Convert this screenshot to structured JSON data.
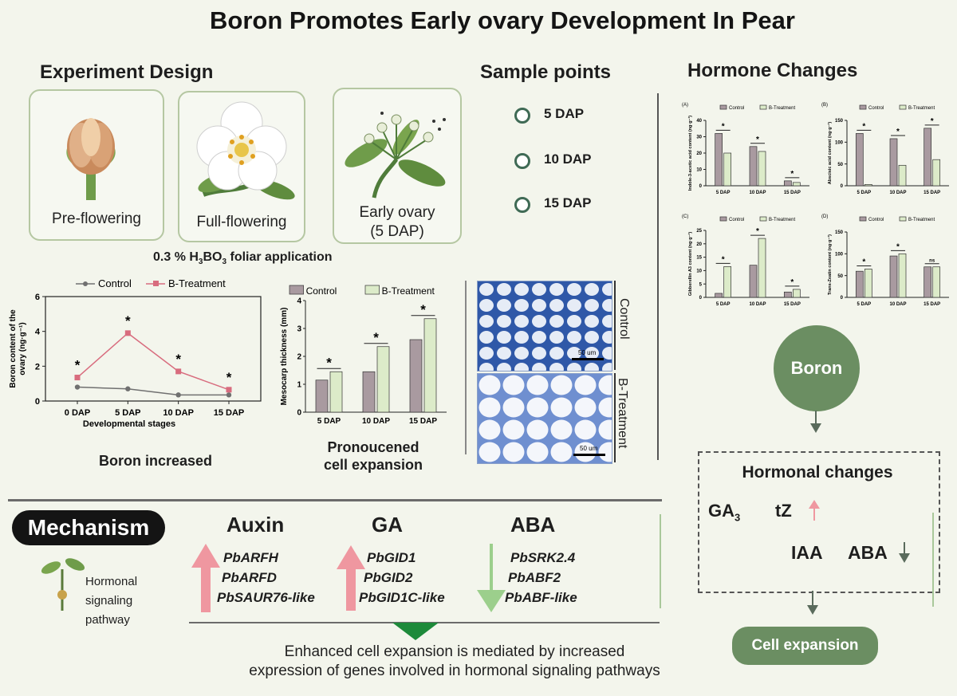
{
  "title": "Boron Promotes Early ovary Development In Pear",
  "experiment": {
    "heading": "Experiment Design",
    "stages": [
      "Pre-flowering",
      "Full-flowering",
      "Early ovary",
      "(5 DAP)"
    ],
    "application": {
      "prefix": "0.3 % H",
      "sub1": "3",
      "mid": "BO",
      "sub2": "3",
      "suffix": " foliar application"
    }
  },
  "sample_points": {
    "heading": "Sample points",
    "points": [
      "5 DAP",
      "10 DAP",
      "15 DAP"
    ]
  },
  "hormone_changes": {
    "heading": "Hormone Changes"
  },
  "colors": {
    "control": "#a99aa0",
    "treatment": "#dcebc9",
    "red_line": "#d86c7e",
    "grey_line": "#707070",
    "green": "#6b8e62",
    "up_arrow": "#ef97a0",
    "down_arrow": "#9ccf8c"
  },
  "chart_data": [
    {
      "id": "boron-content",
      "type": "line",
      "legend": [
        "Control",
        "B-Treatment"
      ],
      "categories": [
        "0 DAP",
        "5 DAP",
        "10 DAP",
        "15 DAP"
      ],
      "series": [
        {
          "name": "Control",
          "values": [
            0.8,
            0.7,
            0.35,
            0.35
          ]
        },
        {
          "name": "B-Treatment",
          "values": [
            1.35,
            3.9,
            1.7,
            0.65
          ]
        }
      ],
      "ylim": [
        0,
        6
      ],
      "yticks": [
        "0",
        "2",
        "4",
        "6"
      ],
      "ylabel": [
        "Boron content of the",
        "ovary (ng·g⁻¹)"
      ],
      "xlabel": "Developmental stages",
      "significance": "*",
      "caption": "Boron increased"
    },
    {
      "id": "mesocarp",
      "type": "bar",
      "legend": [
        "Control",
        "B-Treatment"
      ],
      "categories": [
        "5 DAP",
        "10 DAP",
        "15 DAP"
      ],
      "series": [
        {
          "name": "Control",
          "values": [
            1.15,
            1.45,
            2.6
          ]
        },
        {
          "name": "B-Treatment",
          "values": [
            1.45,
            2.35,
            3.35
          ]
        }
      ],
      "ylim": [
        0,
        4
      ],
      "yticks": [
        "0",
        "1",
        "2",
        "3",
        "4"
      ],
      "ylabel": "Mesocarp thickness (mm)",
      "significance": "*",
      "caption": [
        "Pronoucened",
        "cell expansion"
      ]
    },
    {
      "id": "iaa",
      "type": "bar",
      "panel": "(A)",
      "legend": [
        "Control",
        "B-Treatment"
      ],
      "categories": [
        "5 DAP",
        "10 DAP",
        "15 DAP"
      ],
      "series": [
        {
          "name": "Control",
          "values": [
            32,
            24,
            3
          ]
        },
        {
          "name": "B-Treatment",
          "values": [
            20,
            21,
            2
          ]
        }
      ],
      "ylim": [
        0,
        40
      ],
      "yticks": [
        "0",
        "10",
        "20",
        "30",
        "40"
      ],
      "ylabel": "Indole-3-acetic acid content (ng·g⁻¹)",
      "marks": [
        "*",
        "*",
        "*"
      ]
    },
    {
      "id": "aba",
      "type": "bar",
      "panel": "(B)",
      "legend": [
        "Control",
        "B-Treatment"
      ],
      "categories": [
        "5 DAP",
        "10 DAP",
        "15 DAP"
      ],
      "series": [
        {
          "name": "Control",
          "values": [
            120,
            108,
            132
          ]
        },
        {
          "name": "B-Treatment",
          "values": [
            3,
            47,
            60
          ]
        }
      ],
      "ylim": [
        0,
        150
      ],
      "yticks": [
        "0",
        "50",
        "100",
        "150"
      ],
      "ylabel": "Abscisic acid content (ng·g⁻¹)",
      "marks": [
        "*",
        "*",
        "*"
      ]
    },
    {
      "id": "ga3",
      "type": "bar",
      "panel": "(C)",
      "legend": [
        "Control",
        "B-Treatment"
      ],
      "categories": [
        "5 DAP",
        "10 DAP",
        "15 DAP"
      ],
      "series": [
        {
          "name": "Control",
          "values": [
            1.5,
            12,
            2
          ]
        },
        {
          "name": "B-Treatment",
          "values": [
            11.5,
            22,
            3
          ]
        }
      ],
      "ylim": [
        0,
        25
      ],
      "yticks": [
        "0",
        "5",
        "10",
        "15",
        "20",
        "25"
      ],
      "ylabel": "Gibberellin A3 content (ng·g⁻¹)",
      "marks": [
        "*",
        "*",
        "*"
      ]
    },
    {
      "id": "tz",
      "type": "bar",
      "panel": "(D)",
      "legend": [
        "Control",
        "B-Treatment"
      ],
      "categories": [
        "5 DAP",
        "10 DAP",
        "15 DAP"
      ],
      "series": [
        {
          "name": "Control",
          "values": [
            60,
            95,
            70
          ]
        },
        {
          "name": "B-Treatment",
          "values": [
            65,
            100,
            70
          ]
        }
      ],
      "ylim": [
        0,
        150
      ],
      "yticks": [
        "0",
        "50",
        "100",
        "150"
      ],
      "ylabel": "Trans-Zeatin content (ng·g⁻¹)",
      "marks": [
        "*",
        "*",
        "ns"
      ]
    }
  ],
  "micrograph": {
    "labels": [
      "Control",
      "B-Treatment"
    ],
    "scale": "50 um"
  },
  "mechanism": {
    "label": "Mechanism",
    "side_text": [
      "Hormonal",
      "signaling",
      "pathway"
    ],
    "groups": [
      {
        "name": "Auxin",
        "direction": "up",
        "genes": [
          "PbARFH",
          "PbARFD",
          "PbSAUR76-like"
        ]
      },
      {
        "name": "GA",
        "direction": "up",
        "genes": [
          "PbGID1",
          "PbGID2",
          "PbGID1C-like"
        ]
      },
      {
        "name": "ABA",
        "direction": "down",
        "genes": [
          "PbSRK2.4",
          "PbABF2",
          "PbABF-like"
        ]
      }
    ],
    "conclusion": [
      "Enhanced cell expansion is mediated by increased",
      "expression of genes involved in hormonal signaling pathways"
    ]
  },
  "flow": {
    "boron": "Boron",
    "box_title": "Hormonal changes",
    "ga": "GA",
    "ga_sub": "3",
    "tz": "tZ",
    "iaa": "IAA",
    "aba": "ABA",
    "result": "Cell expansion"
  }
}
